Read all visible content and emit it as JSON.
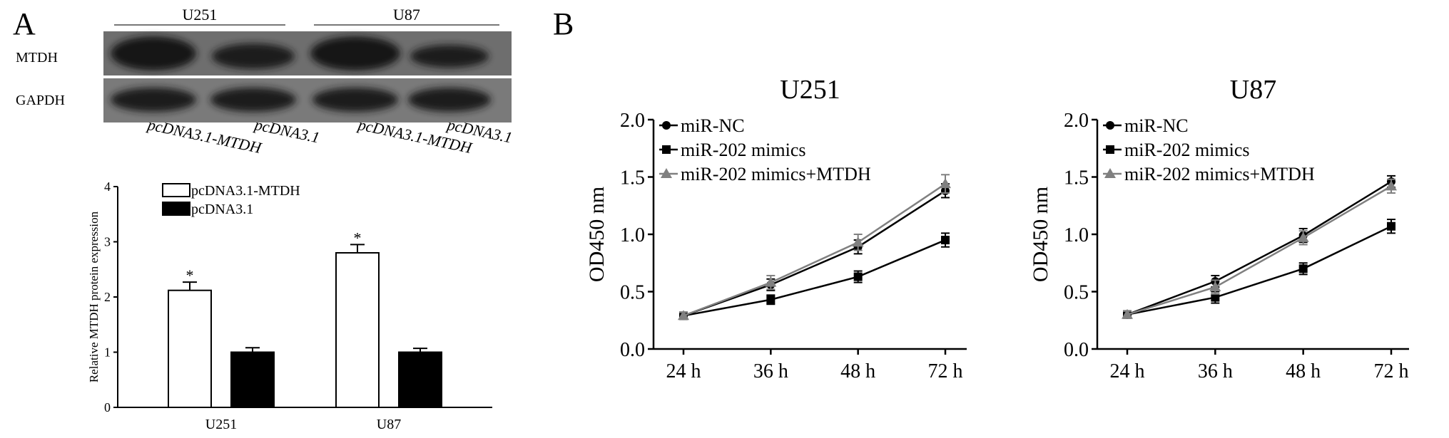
{
  "panels": {
    "a": "A",
    "b": "B"
  },
  "blot": {
    "groups": [
      "U251",
      "U87"
    ],
    "rows": [
      "MTDH",
      "GAPDH"
    ],
    "lanes": [
      "pcDNA3.1-MTDH",
      "pcDNA3.1",
      "pcDNA3.1-MTDH",
      "pcDNA3.1"
    ]
  },
  "chart_data": [
    {
      "type": "bar",
      "categories": [
        "U251",
        "U87"
      ],
      "series": [
        {
          "name": "pcDNA3.1-MTDH",
          "values": [
            2.12,
            2.8
          ],
          "errors": [
            0.15,
            0.15
          ],
          "color": "#ffffff"
        },
        {
          "name": "pcDNA3.1",
          "values": [
            1.0,
            1.0
          ],
          "errors": [
            0.08,
            0.07
          ],
          "color": "#000000"
        }
      ],
      "significance": [
        "*",
        "*"
      ],
      "ylabel": "Relative MTDH protein expression",
      "xlabel": "",
      "ylim": [
        0,
        4
      ],
      "yticks": [
        "0",
        "1",
        "2",
        "3",
        "4"
      ],
      "legend": "top-left",
      "title": ""
    },
    {
      "type": "line",
      "title": "U251",
      "x": [
        "24 h",
        "36 h",
        "48 h",
        "72 h"
      ],
      "series": [
        {
          "name": "miR-NC",
          "marker": "circle",
          "color": "#000000",
          "values": [
            0.29,
            0.56,
            0.89,
            1.38
          ],
          "errors": [
            0.03,
            0.05,
            0.06,
            0.06
          ]
        },
        {
          "name": "miR-202 mimics",
          "marker": "square",
          "color": "#000000",
          "values": [
            0.29,
            0.43,
            0.63,
            0.95
          ],
          "errors": [
            0.03,
            0.04,
            0.05,
            0.06
          ]
        },
        {
          "name": "miR-202 mimics+MTDH",
          "marker": "triangle",
          "color": "#808080",
          "values": [
            0.29,
            0.58,
            0.93,
            1.44
          ],
          "errors": [
            0.03,
            0.06,
            0.07,
            0.08
          ]
        }
      ],
      "ylabel": "OD450 nm",
      "ylim": [
        0.0,
        2.0
      ],
      "yticks": [
        "0.0",
        "0.5",
        "1.0",
        "1.5",
        "2.0"
      ],
      "legend": "top-left"
    },
    {
      "type": "line",
      "title": "U87",
      "x": [
        "24 h",
        "36 h",
        "48 h",
        "72 h"
      ],
      "series": [
        {
          "name": "miR-NC",
          "marker": "circle",
          "color": "#000000",
          "values": [
            0.3,
            0.59,
            0.99,
            1.46
          ],
          "errors": [
            0.03,
            0.05,
            0.06,
            0.05
          ]
        },
        {
          "name": "miR-202 mimics",
          "marker": "square",
          "color": "#000000",
          "values": [
            0.3,
            0.45,
            0.7,
            1.07
          ],
          "errors": [
            0.03,
            0.05,
            0.05,
            0.06
          ]
        },
        {
          "name": "miR-202 mimics+MTDH",
          "marker": "triangle",
          "color": "#808080",
          "values": [
            0.3,
            0.54,
            0.97,
            1.42
          ],
          "errors": [
            0.03,
            0.06,
            0.06,
            0.06
          ]
        }
      ],
      "ylabel": "OD450 nm",
      "ylim": [
        0.0,
        2.0
      ],
      "yticks": [
        "0.0",
        "0.5",
        "1.0",
        "1.5",
        "2.0"
      ],
      "legend": "top-left"
    }
  ]
}
